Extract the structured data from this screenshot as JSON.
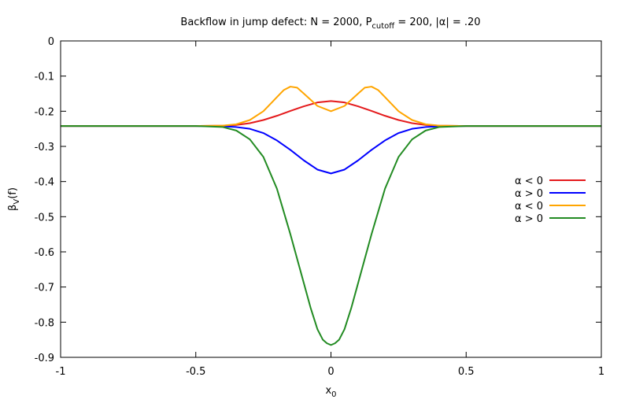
{
  "chart_data": {
    "type": "line",
    "title": {
      "prefix": "Backflow in jump defect: N = 2000, P",
      "prefix_sub": "cutoff",
      "suffix": " = 200, |α| = .20"
    },
    "xlabel": {
      "base": "x",
      "sub": "0"
    },
    "ylabel": {
      "base": "β",
      "sub": "V",
      "suffix": "(f)"
    },
    "xlim": [
      -1,
      1
    ],
    "ylim": [
      -0.9,
      0
    ],
    "x_ticks": [
      -1,
      -0.5,
      0,
      0.5,
      1
    ],
    "x_tick_labels": [
      "-1",
      "-0.5",
      "0",
      "0.5",
      "1"
    ],
    "y_ticks": [
      0,
      -0.1,
      -0.2,
      -0.3,
      -0.4,
      -0.5,
      -0.6,
      -0.7,
      -0.8,
      -0.9
    ],
    "y_tick_labels": [
      "0",
      "-0.1",
      "-0.2",
      "-0.3",
      "-0.4",
      "-0.5",
      "-0.6",
      "-0.7",
      "-0.8",
      "-0.9"
    ],
    "grid": false,
    "legend_position": "right",
    "series": [
      {
        "name": "α < 0",
        "color": "#e41a1c",
        "x": [
          -1,
          -0.5,
          -0.4,
          -0.35,
          -0.3,
          -0.25,
          -0.2,
          -0.15,
          -0.1,
          -0.05,
          0,
          0.05,
          0.1,
          0.15,
          0.2,
          0.25,
          0.3,
          0.35,
          0.4,
          0.5,
          1
        ],
        "y": [
          -0.242,
          -0.242,
          -0.241,
          -0.239,
          -0.234,
          -0.225,
          -0.213,
          -0.199,
          -0.186,
          -0.175,
          -0.171,
          -0.175,
          -0.186,
          -0.199,
          -0.213,
          -0.225,
          -0.234,
          -0.239,
          -0.241,
          -0.242,
          -0.242
        ]
      },
      {
        "name": "α > 0",
        "color": "#0000ff",
        "x": [
          -1,
          -0.5,
          -0.4,
          -0.35,
          -0.3,
          -0.25,
          -0.2,
          -0.15,
          -0.1,
          -0.05,
          0,
          0.05,
          0.1,
          0.15,
          0.2,
          0.25,
          0.3,
          0.35,
          0.4,
          0.5,
          1
        ],
        "y": [
          -0.242,
          -0.242,
          -0.243,
          -0.245,
          -0.25,
          -0.262,
          -0.283,
          -0.31,
          -0.34,
          -0.366,
          -0.377,
          -0.366,
          -0.34,
          -0.31,
          -0.283,
          -0.262,
          -0.25,
          -0.245,
          -0.243,
          -0.242,
          -0.242
        ]
      },
      {
        "name": "α < 0",
        "color": "#ffa500",
        "x": [
          -1,
          -0.5,
          -0.4,
          -0.35,
          -0.3,
          -0.25,
          -0.2,
          -0.175,
          -0.15,
          -0.125,
          -0.1,
          -0.05,
          0,
          0.05,
          0.1,
          0.125,
          0.15,
          0.175,
          0.2,
          0.25,
          0.3,
          0.35,
          0.4,
          0.5,
          1
        ],
        "y": [
          -0.242,
          -0.242,
          -0.241,
          -0.237,
          -0.225,
          -0.2,
          -0.16,
          -0.14,
          -0.13,
          -0.133,
          -0.15,
          -0.185,
          -0.2,
          -0.185,
          -0.15,
          -0.133,
          -0.13,
          -0.14,
          -0.16,
          -0.2,
          -0.225,
          -0.237,
          -0.241,
          -0.242,
          -0.242
        ]
      },
      {
        "name": "α > 0",
        "color": "#228b22",
        "x": [
          -1,
          -0.5,
          -0.4,
          -0.35,
          -0.3,
          -0.25,
          -0.2,
          -0.15,
          -0.1,
          -0.075,
          -0.05,
          -0.03,
          -0.015,
          0,
          0.015,
          0.03,
          0.05,
          0.075,
          0.1,
          0.15,
          0.2,
          0.25,
          0.3,
          0.35,
          0.4,
          0.5,
          1
        ],
        "y": [
          -0.242,
          -0.242,
          -0.245,
          -0.255,
          -0.28,
          -0.33,
          -0.42,
          -0.55,
          -0.69,
          -0.76,
          -0.82,
          -0.85,
          -0.86,
          -0.865,
          -0.86,
          -0.85,
          -0.82,
          -0.76,
          -0.69,
          -0.55,
          -0.42,
          -0.33,
          -0.28,
          -0.255,
          -0.245,
          -0.242,
          -0.242
        ]
      }
    ]
  }
}
